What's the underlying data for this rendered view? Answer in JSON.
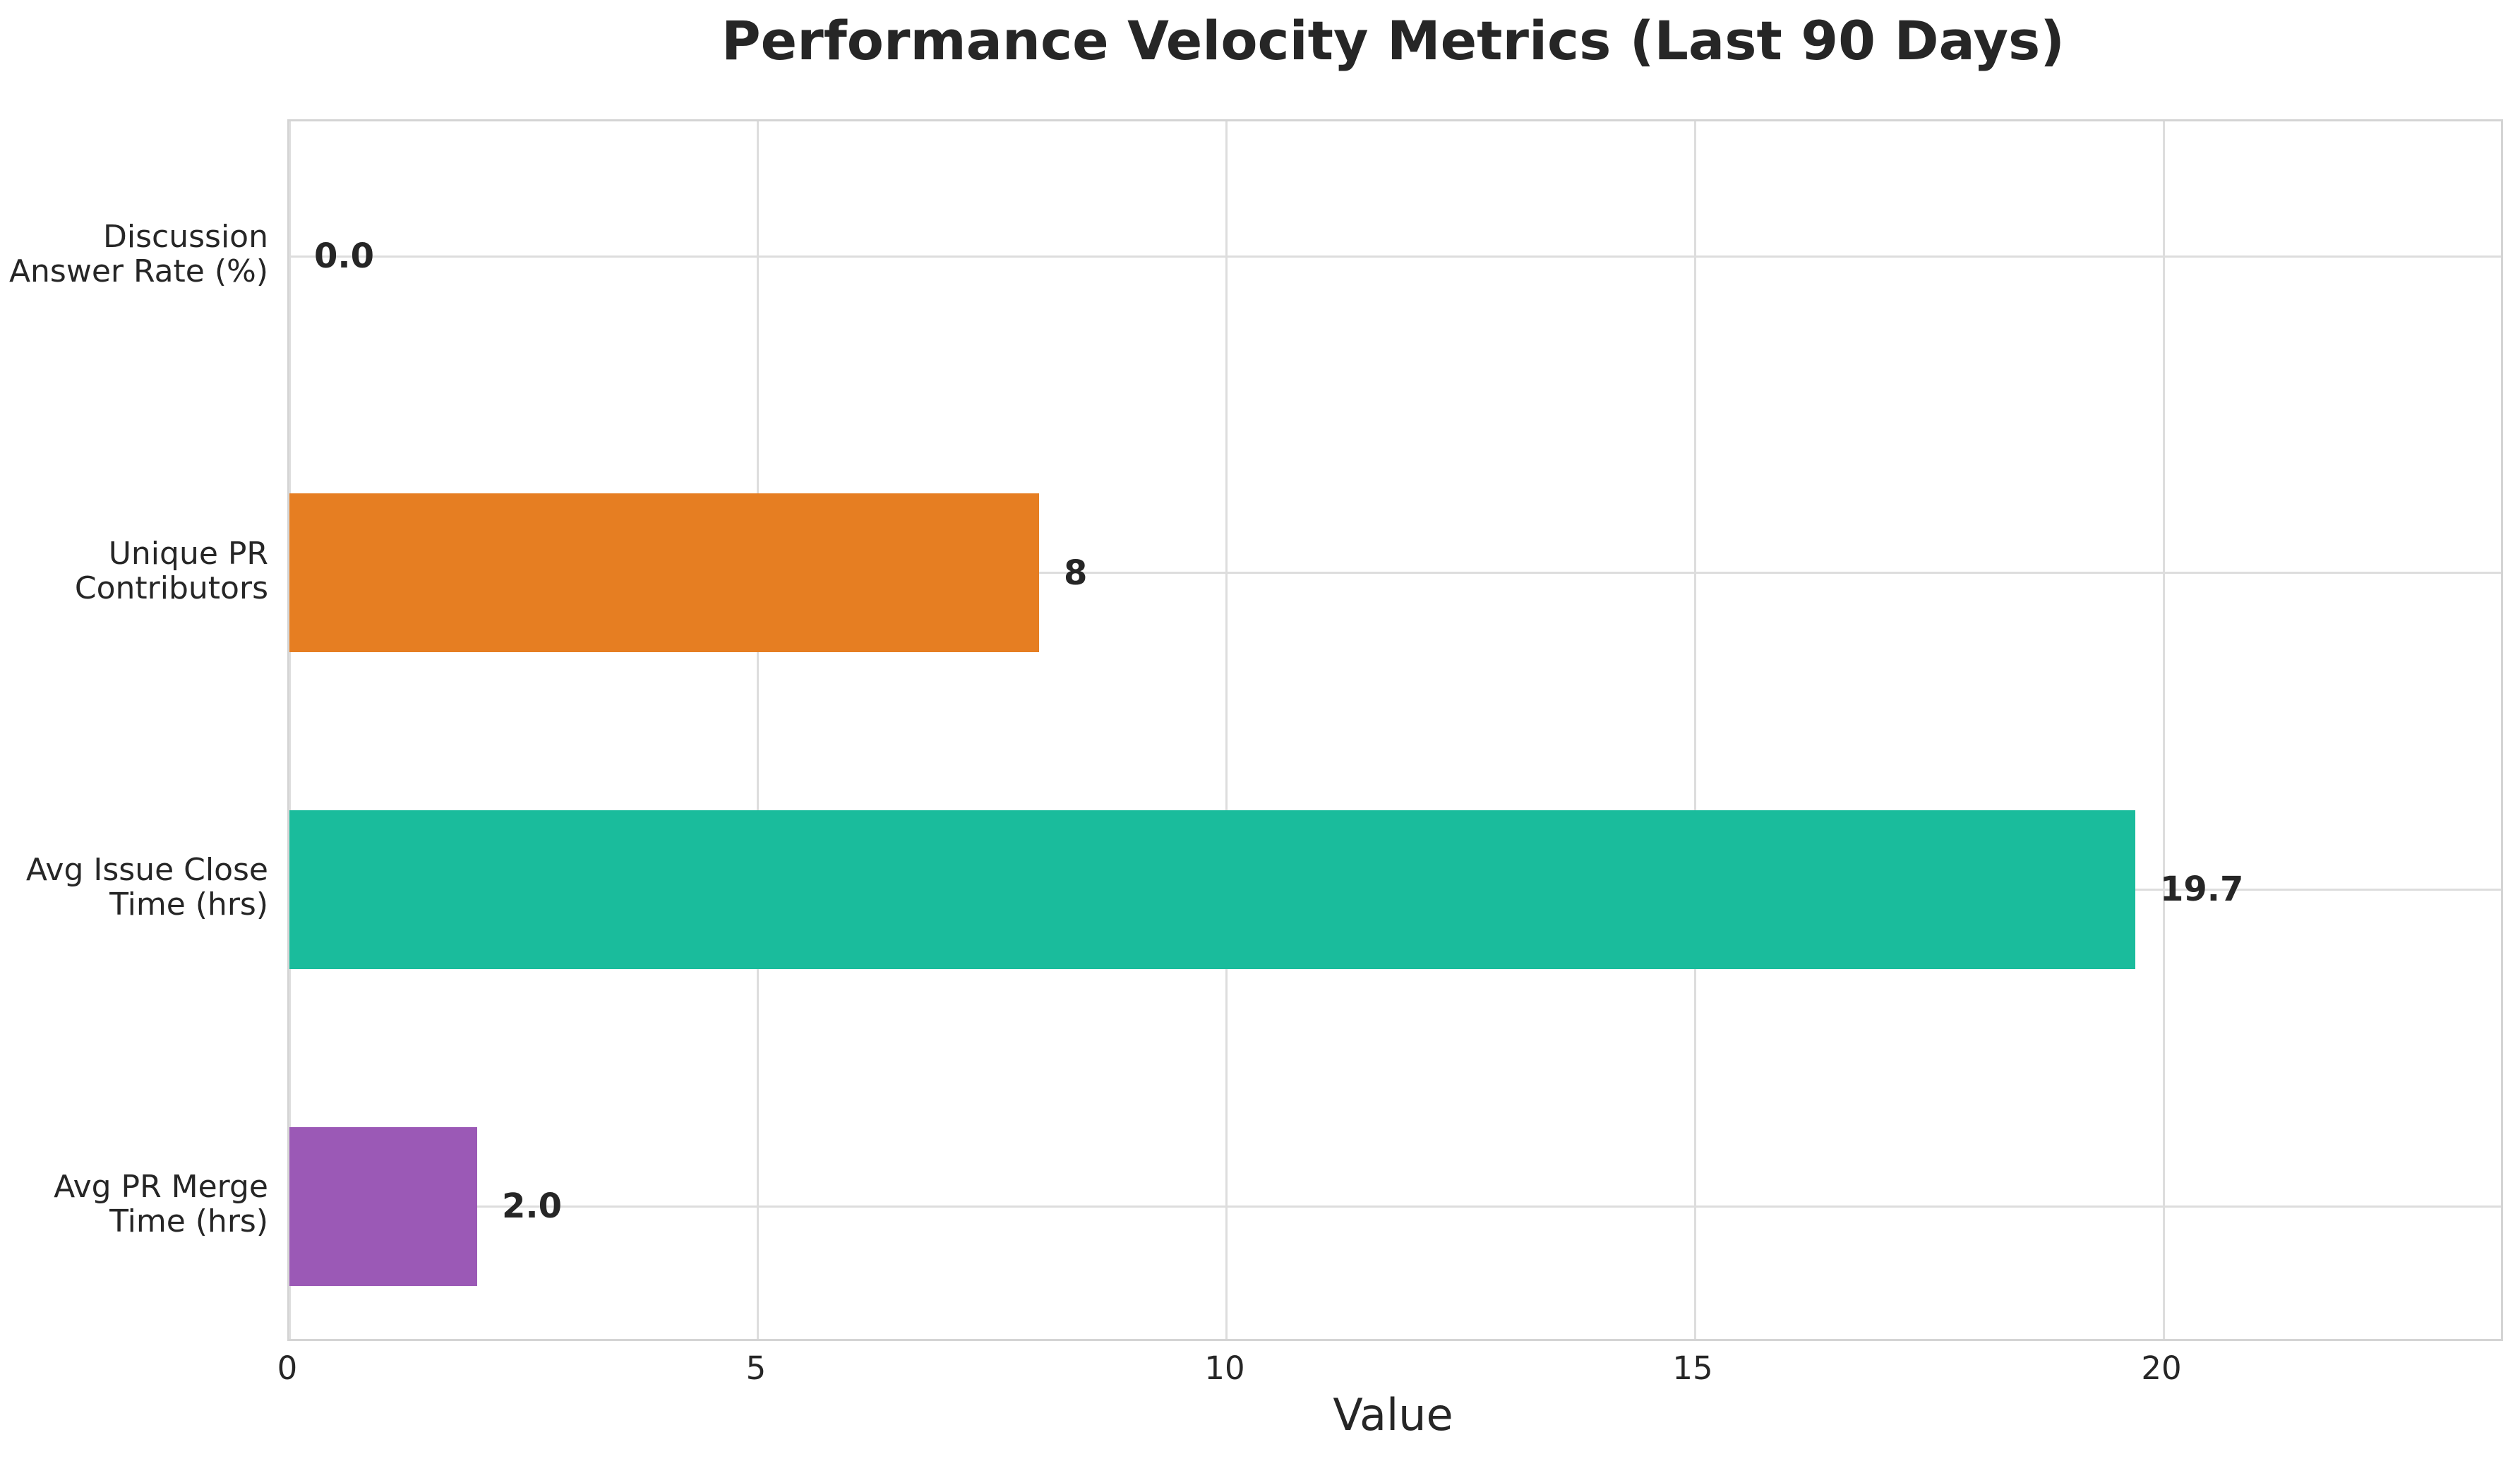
{
  "chart_data": {
    "type": "bar",
    "orientation": "horizontal",
    "title": "Performance Velocity Metrics (Last 90 Days)",
    "xlabel": "Value",
    "ylabel": "",
    "categories": [
      "Discussion\nAnswer Rate (%)",
      "Unique PR\nContributors",
      "Avg Issue Close\nTime (hrs)",
      "Avg PR Merge\nTime (hrs)"
    ],
    "values": [
      0.0,
      8,
      19.7,
      2.0
    ],
    "value_labels": [
      "0.0",
      "8",
      "19.7",
      "2.0"
    ],
    "bar_colors": [
      null,
      "#e67e22",
      "#1abc9c",
      "#9b59b6"
    ],
    "x_ticks": [
      0,
      5,
      10,
      15,
      20
    ],
    "x_tick_labels": [
      "0",
      "5",
      "10",
      "15",
      "20"
    ],
    "xlim": [
      0,
      23.6
    ],
    "grid": true,
    "legend": false,
    "colors": {
      "text": "#262626",
      "grid": "#dddddd",
      "spine": "#d4d4d4",
      "background": "#ffffff"
    }
  }
}
